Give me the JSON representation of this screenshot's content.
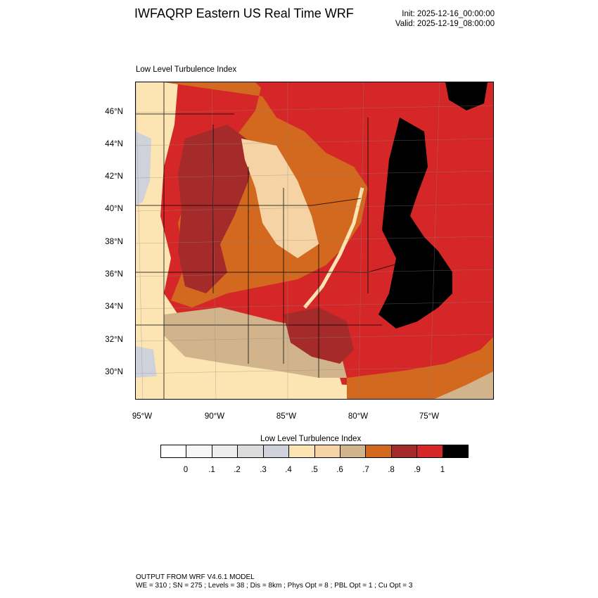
{
  "header": {
    "title": "IWFAQRP Eastern US Real Time WRF",
    "init": "Init: 2025-12-16_00:00:00",
    "valid": "Valid: 2025-12-19_08:00:00"
  },
  "map": {
    "subtitle": "Low Level Turbulence Index",
    "lat_labels": [
      "46°N",
      "44°N",
      "42°N",
      "40°N",
      "38°N",
      "36°N",
      "34°N",
      "32°N",
      "30°N"
    ],
    "lon_labels": [
      "95°W",
      "90°W",
      "85°W",
      "80°W",
      "75°W"
    ]
  },
  "colorbar": {
    "title": "Low Level Turbulence Index",
    "ticks": [
      "0",
      ".1",
      ".2",
      ".3",
      ".4",
      ".5",
      ".6",
      ".7",
      ".8",
      ".9",
      "1"
    ],
    "colors": [
      "#ffffff",
      "#f7f7f7",
      "#ededed",
      "#dcdcdc",
      "#cfd2da",
      "#fde4b3",
      "#f6d3a4",
      "#d2b48c",
      "#d2691e",
      "#a52a2a",
      "#d62728",
      "#000000"
    ]
  },
  "footer": {
    "line1": "OUTPUT FROM WRF V4.6.1 MODEL",
    "line2": "WE = 310 ; SN = 275 ; Levels = 38 ; Dis = 8km ; Phys Opt = 8 ; PBL Opt = 1 ; Cu Opt = 3"
  }
}
